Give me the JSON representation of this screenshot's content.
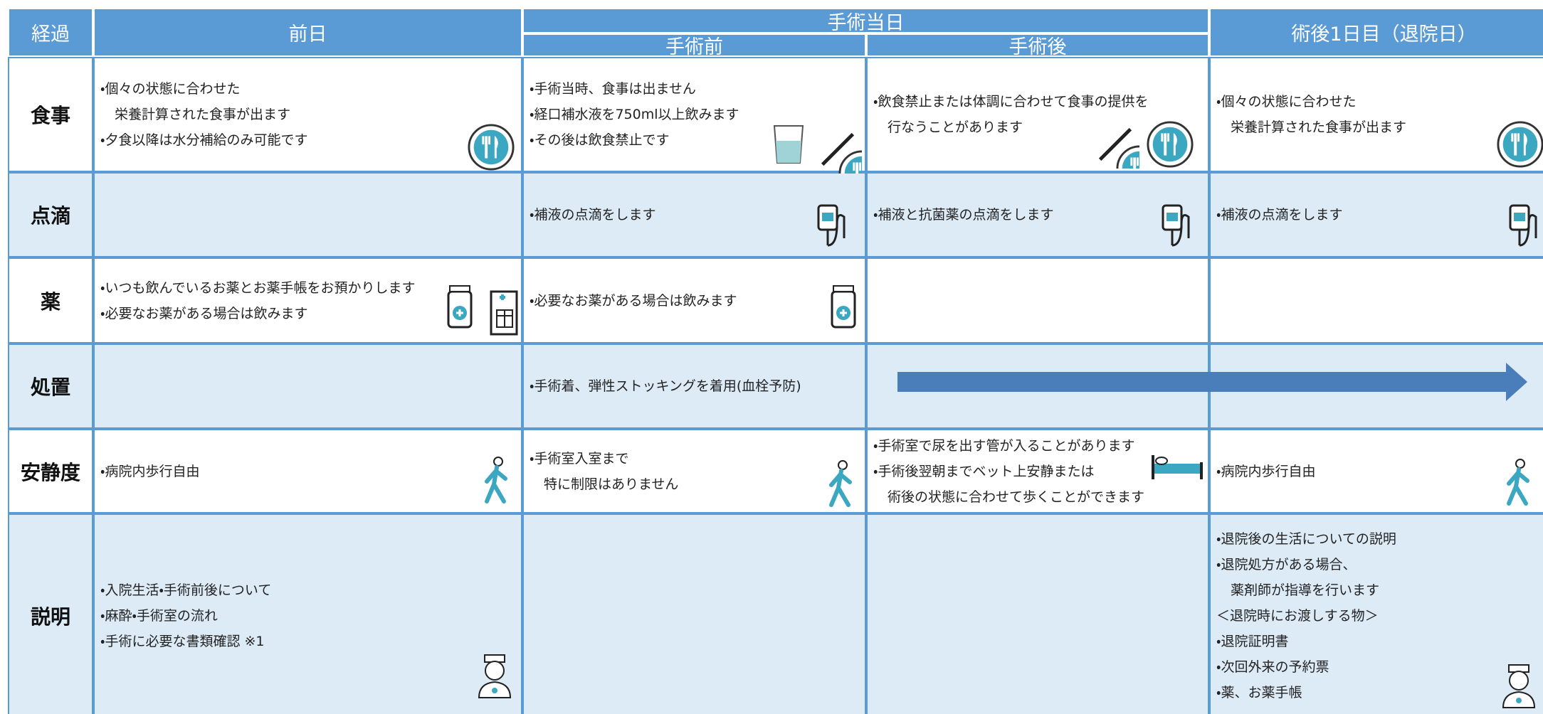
{
  "header": {
    "progress": "経過",
    "day_before": "前日",
    "surgery_day": "手術当日",
    "before_surgery": "手術前",
    "after_surgery": "手術後",
    "post_op_day1": "術後1日目（退院日）"
  },
  "rows": [
    {
      "label": "食事",
      "cells": [
        [
          "・個々の状態に合わせた",
          "栄養計算された食事が出ます",
          "・夕食以降は水分補給のみ可能です"
        ],
        [
          "・手術当時、食事は出ません",
          "・経口補水液を750ml以上飲みます",
          "・その後は飲食禁止です"
        ],
        [
          "・飲食禁止または体調に合わせて食事の提供を",
          "行なうことがあります"
        ],
        [
          "・個々の状態に合わせた",
          "栄養計算された食事が出ます"
        ]
      ]
    },
    {
      "label": "点滴",
      "cells": [
        [],
        [
          "・補液の点滴をします"
        ],
        [
          "・補液と抗菌薬の点滴をします"
        ],
        [
          "・補液の点滴をします"
        ]
      ]
    },
    {
      "label": "薬",
      "cells": [
        [
          "・いつも飲んでいるお薬とお薬手帳をお預かりします",
          "・必要なお薬がある場合は飲みます"
        ],
        [
          "・必要なお薬がある場合は飲みます"
        ],
        [],
        []
      ]
    },
    {
      "label": "処置",
      "cells": [
        [],
        [
          "・手術着、弾性ストッキングを着用(血栓予防)"
        ],
        [],
        []
      ]
    },
    {
      "label": "安静度",
      "cells": [
        [
          "・病院内歩行自由"
        ],
        [
          "・手術室入室まで",
          "特に制限はありません"
        ],
        [
          "・手術室で尿を出す管が入ることがあります",
          "・手術後翌朝までベット上安静または",
          "術後の状態に合わせて歩くことができます"
        ],
        [
          "・病院内歩行自由"
        ]
      ]
    },
    {
      "label": "説明",
      "cells": [
        [
          "・入院生活・手術前後について",
          "・麻酔・手術室の流れ",
          "・手術に必要な書類確認 ※1"
        ],
        [],
        [],
        [
          "・退院後の生活についての説明",
          "・退院処方がある場合、",
          "薬剤師が指導を行います",
          "＜退院時にお渡しする物＞",
          "・退院証明書",
          "・次回外来の予約票",
          "・薬、お薬手帳"
        ]
      ]
    }
  ]
}
